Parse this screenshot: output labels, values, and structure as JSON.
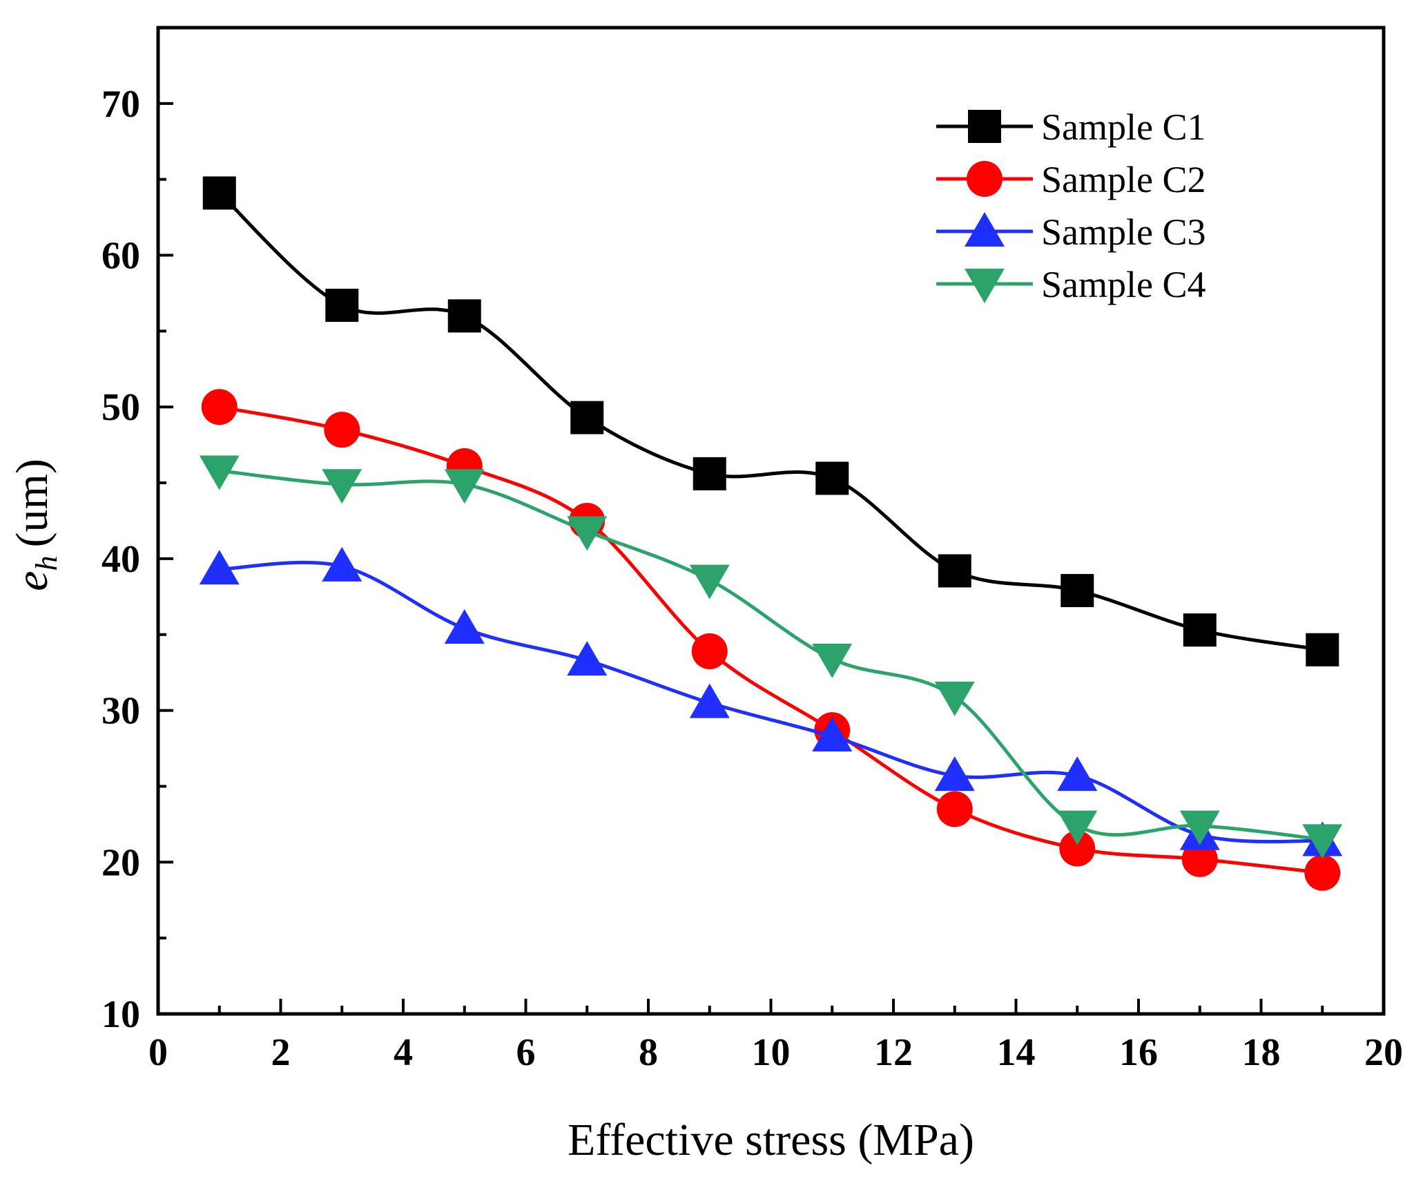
{
  "chart_data": {
    "type": "line",
    "title": "",
    "xlabel": "Effective stress (MPa)",
    "ylabel": {
      "symbol": "e",
      "subscript": "h",
      "unit": "(um)"
    },
    "xlim": [
      0,
      20
    ],
    "ylim": [
      10,
      75
    ],
    "xticks": [
      0,
      2,
      4,
      6,
      8,
      10,
      12,
      14,
      16,
      18,
      20
    ],
    "yticks": [
      10,
      20,
      30,
      40,
      50,
      60,
      70
    ],
    "grid": false,
    "legend_position": "top-right",
    "x": [
      1,
      3,
      5,
      7,
      9,
      11,
      13,
      15,
      17,
      19
    ],
    "series": [
      {
        "name": "Sample C1",
        "color": "#000000",
        "marker": "square",
        "values": [
          64.1,
          56.7,
          56.0,
          49.3,
          45.6,
          45.3,
          39.2,
          37.9,
          35.3,
          34.0
        ]
      },
      {
        "name": "Sample C2",
        "color": "#ff0000",
        "marker": "circle",
        "values": [
          50.0,
          48.5,
          46.1,
          42.5,
          33.9,
          28.7,
          23.5,
          20.9,
          20.2,
          19.3
        ]
      },
      {
        "name": "Sample C3",
        "color": "#1f2fff",
        "marker": "triangle-up",
        "values": [
          39.3,
          39.5,
          35.4,
          33.3,
          30.5,
          28.3,
          25.7,
          25.7,
          21.8,
          21.4
        ]
      },
      {
        "name": "Sample C4",
        "color": "#2ca36b",
        "marker": "triangle-down",
        "values": [
          45.8,
          44.9,
          44.9,
          41.8,
          38.6,
          33.4,
          30.9,
          22.4,
          22.4,
          21.5
        ]
      }
    ]
  }
}
